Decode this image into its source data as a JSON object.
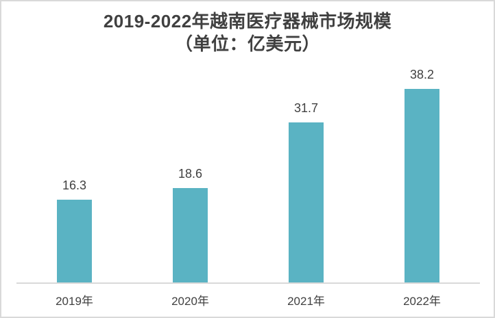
{
  "title": {
    "line1": "2019-2022年越南医疗器械市场规模",
    "line2": "（单位：亿美元）"
  },
  "colors": {
    "bar": "#5ab3c3",
    "title_text": "#404040",
    "label_text": "#404040",
    "axis_line": "#d9d9d9",
    "border": "#d9d9d9",
    "background": "#ffffff"
  },
  "chart_data": {
    "type": "bar",
    "categories": [
      "2019年",
      "2020年",
      "2021年",
      "2022年"
    ],
    "values": [
      16.3,
      18.6,
      31.7,
      38.2
    ],
    "data_labels": [
      "16.3",
      "18.6",
      "31.7",
      "38.2"
    ],
    "title": "2019-2022年越南医疗器械市场规模（单位：亿美元）",
    "xlabel": "",
    "ylabel": "",
    "ylim": [
      0,
      43
    ],
    "grid": false,
    "legend": false
  }
}
